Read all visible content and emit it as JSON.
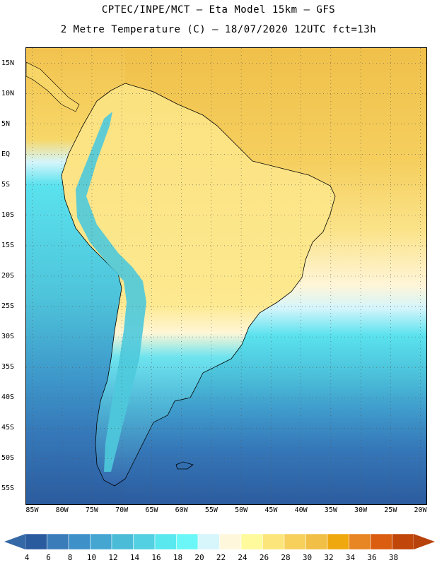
{
  "header": {
    "title_line1": "CPTEC/INPE/MCT –  Eta Model 15km – GFS",
    "title_line2": "2 Metre Temperature (C) – 18/07/2020 12UTC fct=13h"
  },
  "map": {
    "extent": {
      "lon": [
        -86,
        -19
      ],
      "lat": [
        -57.5,
        17.5
      ]
    },
    "lat_ticks": [
      "15N",
      "10N",
      "5N",
      "EQ",
      "5S",
      "10S",
      "15S",
      "20S",
      "25S",
      "30S",
      "35S",
      "40S",
      "45S",
      "50S",
      "55S"
    ],
    "lat_values": [
      15,
      10,
      5,
      0,
      -5,
      -10,
      -15,
      -20,
      -25,
      -30,
      -35,
      -40,
      -45,
      -50,
      -55
    ],
    "lon_ticks": [
      "85W",
      "80W",
      "75W",
      "70W",
      "65W",
      "60W",
      "55W",
      "50W",
      "45W",
      "40W",
      "35W",
      "30W",
      "25W",
      "20W"
    ],
    "lon_values": [
      -85,
      -80,
      -75,
      -70,
      -65,
      -60,
      -55,
      -50,
      -45,
      -40,
      -35,
      -30,
      -25,
      -20
    ],
    "colors": {
      "ocean_warm": "#f2c24e",
      "land_warm": "#fbe17f",
      "cold_deep": "#2d5fa6",
      "cold": "#3f8fc6",
      "mild": "#4ec9dc",
      "coast_line": "#000000"
    }
  },
  "colorbar": {
    "labels": [
      "4",
      "6",
      "8",
      "10",
      "12",
      "14",
      "16",
      "18",
      "20",
      "22",
      "24",
      "26",
      "28",
      "30",
      "32",
      "34",
      "36",
      "38"
    ],
    "colors": [
      "#2a5b9f",
      "#3a7cba",
      "#3e91c8",
      "#45a6d2",
      "#4bbcd8",
      "#53d0e2",
      "#5ae8ef",
      "#6bf7f7",
      "#d6f6fb",
      "#fff7dc",
      "#fffa9c",
      "#fce57a",
      "#f7d05c",
      "#f1bf45",
      "#f0a80f",
      "#e78622",
      "#da5d10",
      "#c0460a"
    ],
    "low_arrow_color": "#3468a6",
    "high_arrow_color": "#b8420c"
  }
}
